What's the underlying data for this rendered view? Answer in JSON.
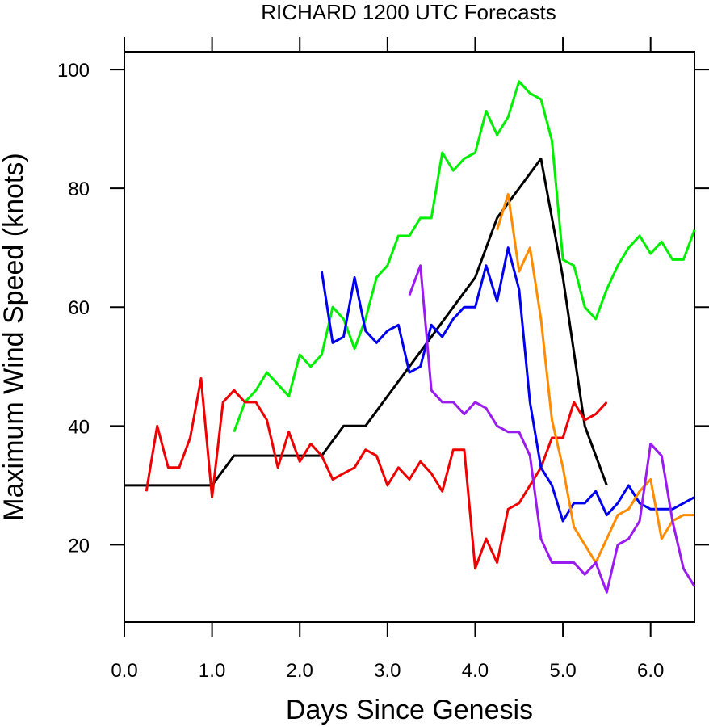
{
  "chart_data": {
    "type": "line",
    "title": "RICHARD 1200 UTC Forecasts",
    "xlabel": "Days Since Genesis",
    "ylabel": "Maximum Wind Speed (knots)",
    "xlim": [
      0,
      6.5
    ],
    "ylim": [
      7,
      103
    ],
    "x_ticks": [
      0,
      1,
      2,
      3,
      4,
      5,
      6
    ],
    "x_tick_labels": [
      "0.0",
      "1.0",
      "2.0",
      "3.0",
      "4.0",
      "5.0",
      "6.0"
    ],
    "y_ticks": [
      20,
      40,
      60,
      80,
      100
    ],
    "y_tick_labels": [
      "20",
      "40",
      "60",
      "80",
      "100"
    ],
    "grid": false,
    "legend": "none",
    "series": [
      {
        "color": "#00ee00",
        "x": [
          1.25,
          1.375,
          1.5,
          1.625,
          1.75,
          1.875,
          2.0,
          2.125,
          2.25,
          2.375,
          2.5,
          2.625,
          2.75,
          2.875,
          3.0,
          3.125,
          3.25,
          3.375,
          3.5,
          3.625,
          3.75,
          3.875,
          4.0,
          4.125,
          4.25,
          4.375,
          4.5,
          4.625,
          4.75,
          4.875,
          5.0,
          5.125,
          5.25,
          5.375,
          5.5,
          5.625,
          5.75,
          5.875,
          6.0,
          6.125,
          6.25,
          6.375,
          6.5
        ],
        "y": [
          39,
          44,
          46,
          49,
          47,
          45,
          52,
          50,
          52,
          60,
          58,
          53,
          58,
          65,
          67,
          72,
          72,
          75,
          75,
          86,
          83,
          85,
          86,
          93,
          89,
          92,
          98,
          96,
          95,
          88,
          68,
          67,
          60,
          58,
          63,
          67,
          70,
          72,
          69,
          71,
          68,
          68,
          73
        ]
      },
      {
        "color": "#000000",
        "x": [
          0,
          1.0,
          1.25,
          1.5,
          1.75,
          2.0,
          2.25,
          2.5,
          2.75,
          3.0,
          3.25,
          3.5,
          3.75,
          4.0,
          4.25,
          4.5,
          4.75,
          5.0,
          5.25,
          5.5
        ],
        "y": [
          30,
          30,
          35,
          35,
          35,
          35,
          35,
          40,
          40,
          45,
          50,
          55,
          60,
          65,
          75,
          80,
          85,
          65,
          40,
          30
        ]
      },
      {
        "color": "#ee0000",
        "x": [
          0.25,
          0.375,
          0.5,
          0.625,
          0.75,
          0.875,
          1.0,
          1.125,
          1.25,
          1.375,
          1.5,
          1.625,
          1.75,
          1.875,
          2.0,
          2.125,
          2.25,
          2.375,
          2.5,
          2.625,
          2.75,
          2.875,
          3.0,
          3.125,
          3.25,
          3.375,
          3.5,
          3.625,
          3.75,
          3.875,
          4.0,
          4.125,
          4.25,
          4.375,
          4.5,
          4.625,
          4.75,
          4.875,
          5.0,
          5.125,
          5.25,
          5.375,
          5.5
        ],
        "y": [
          29,
          40,
          33,
          33,
          38,
          48,
          28,
          44,
          46,
          44,
          44,
          41,
          33,
          39,
          34,
          37,
          35,
          31,
          32,
          33,
          36,
          35,
          30,
          33,
          31,
          34,
          32,
          29,
          36,
          36,
          16,
          21,
          17,
          26,
          27,
          30,
          33,
          38,
          38,
          44,
          41,
          42,
          44
        ]
      },
      {
        "color": "#0000ee",
        "x": [
          2.25,
          2.375,
          2.5,
          2.625,
          2.75,
          2.875,
          3.0,
          3.125,
          3.25,
          3.375,
          3.5,
          3.625,
          3.75,
          3.875,
          4.0,
          4.125,
          4.25,
          4.375,
          4.5,
          4.625,
          4.75,
          4.875,
          5.0,
          5.125,
          5.25,
          5.375,
          5.5,
          5.625,
          5.75,
          5.875,
          6.0,
          6.125,
          6.25,
          6.375,
          6.5
        ],
        "y": [
          66,
          54,
          55,
          65,
          56,
          54,
          56,
          57,
          49,
          50,
          57,
          55,
          58,
          60,
          60,
          67,
          61,
          70,
          63,
          44,
          33,
          30,
          24,
          27,
          27,
          29,
          25,
          27,
          30,
          27,
          26,
          26,
          26,
          27,
          28
        ]
      },
      {
        "color": "#ff8c00",
        "x": [
          4.25,
          4.375,
          4.5,
          4.625,
          4.75,
          4.875,
          5.0,
          5.125,
          5.25,
          5.375,
          5.5,
          5.625,
          5.75,
          5.875,
          6.0,
          6.125,
          6.25,
          6.375,
          6.5
        ],
        "y": [
          73,
          79,
          66,
          70,
          58,
          41,
          33,
          23,
          20,
          17,
          21,
          25,
          26,
          29,
          31,
          21,
          24,
          25,
          25
        ]
      },
      {
        "color": "#9a1bee",
        "x": [
          3.25,
          3.375,
          3.5,
          3.625,
          3.75,
          3.875,
          4.0,
          4.125,
          4.25,
          4.375,
          4.5,
          4.625,
          4.75,
          4.875,
          5.0,
          5.125,
          5.25,
          5.375,
          5.5,
          5.625,
          5.75,
          5.875,
          6.0,
          6.125,
          6.25,
          6.375,
          6.5
        ],
        "y": [
          62,
          67,
          46,
          44,
          44,
          42,
          44,
          43,
          40,
          39,
          39,
          35,
          21,
          17,
          17,
          17,
          15,
          17,
          12,
          20,
          21,
          24,
          37,
          35,
          24,
          16,
          13
        ]
      }
    ]
  }
}
